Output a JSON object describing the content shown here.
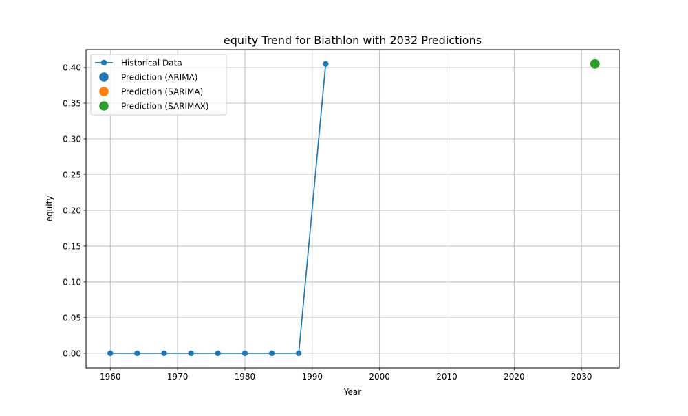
{
  "chart_data": {
    "type": "line",
    "title": "equity Trend for Biathlon with 2032 Predictions",
    "xlabel": "Year",
    "ylabel": "equity",
    "xlim": [
      1956.4,
      2035.6
    ],
    "ylim": [
      -0.0203,
      0.425
    ],
    "x_ticks": [
      1960,
      1970,
      1980,
      1990,
      2000,
      2010,
      2020,
      2030
    ],
    "y_ticks": [
      0.0,
      0.05,
      0.1,
      0.15,
      0.2,
      0.25,
      0.3,
      0.35,
      0.4
    ],
    "y_tick_labels": [
      "0.00",
      "0.05",
      "0.10",
      "0.15",
      "0.20",
      "0.25",
      "0.30",
      "0.35",
      "0.40"
    ],
    "grid": true,
    "legend_position": "upper-left",
    "series": [
      {
        "name": "Historical Data",
        "kind": "line-marker",
        "color": "#1f77b4",
        "x": [
          1960,
          1964,
          1968,
          1972,
          1976,
          1980,
          1984,
          1988,
          1992
        ],
        "y": [
          0.0,
          0.0,
          0.0,
          0.0,
          0.0,
          0.0,
          0.0,
          0.0,
          0.405
        ]
      },
      {
        "name": "Prediction (ARIMA)",
        "kind": "scatter",
        "color": "#1f77b4",
        "x": [
          2032
        ],
        "y": [
          0.405
        ]
      },
      {
        "name": "Prediction (SARIMA)",
        "kind": "scatter",
        "color": "#ff7f0e",
        "x": [
          2032
        ],
        "y": [
          0.405
        ]
      },
      {
        "name": "Prediction (SARIMAX)",
        "kind": "scatter",
        "color": "#2ca02c",
        "x": [
          2032
        ],
        "y": [
          0.405
        ]
      }
    ]
  }
}
